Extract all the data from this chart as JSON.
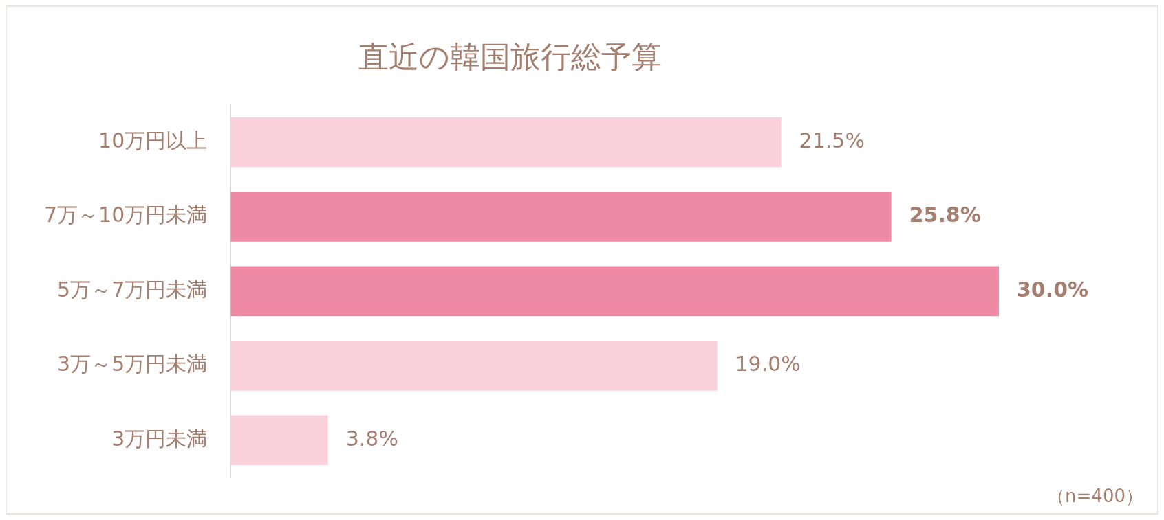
{
  "chart_data": {
    "type": "bar",
    "orientation": "horizontal",
    "title": "直近の韓国旅行総予算",
    "categories": [
      "10万円以上",
      "7万～10万円未満",
      "5万～7万円未満",
      "3万～5万円未満",
      "3万円未満"
    ],
    "values": [
      21.5,
      25.8,
      30.0,
      19.0,
      3.8
    ],
    "colors": [
      "#f9d0dc",
      "#ee8aa4",
      "#ee8aa4",
      "#f9d0dc",
      "#f9d0dc"
    ],
    "value_labels": [
      "21.5%",
      "25.8%",
      "30.0%",
      "19.0%",
      "3.8%"
    ],
    "annotations": [
      "（n=400）"
    ],
    "grid": false,
    "legend": false
  }
}
